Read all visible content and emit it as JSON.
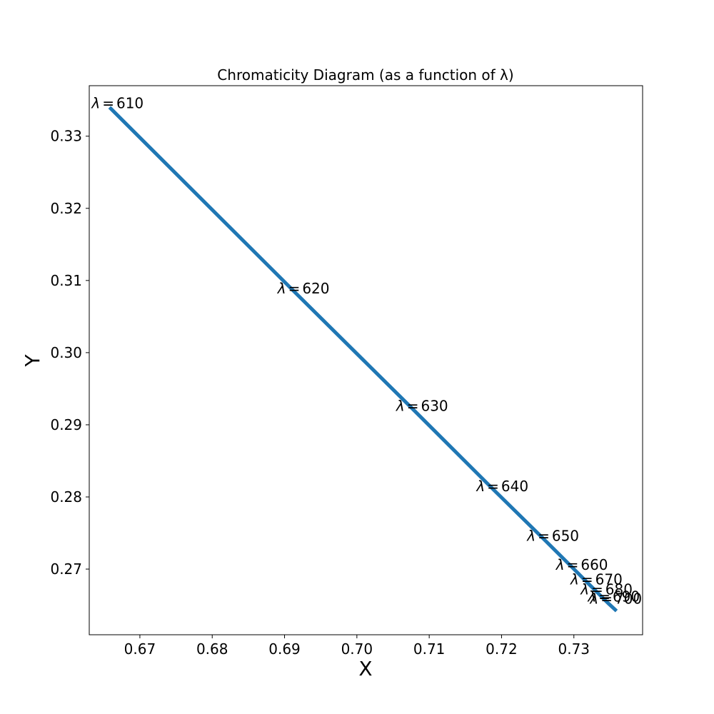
{
  "chart_data": {
    "type": "line",
    "title": "Chromaticity Diagram (as a function of λ)",
    "xlabel": "X",
    "ylabel": "Y",
    "xlim": [
      0.663,
      0.7395
    ],
    "ylim": [
      0.2609,
      0.337
    ],
    "xticks": [
      "0.67",
      "0.68",
      "0.69",
      "0.70",
      "0.71",
      "0.72",
      "0.73"
    ],
    "yticks": [
      "0.27",
      "0.28",
      "0.29",
      "0.30",
      "0.31",
      "0.32",
      "0.33"
    ],
    "grid": false,
    "series_color": "#1f77b4",
    "points": [
      {
        "lambda": 610,
        "x": 0.6658,
        "y": 0.334
      },
      {
        "lambda": 620,
        "x": 0.6915,
        "y": 0.3083
      },
      {
        "lambda": 630,
        "x": 0.7079,
        "y": 0.292
      },
      {
        "lambda": 640,
        "x": 0.719,
        "y": 0.2809
      },
      {
        "lambda": 650,
        "x": 0.726,
        "y": 0.274
      },
      {
        "lambda": 660,
        "x": 0.73,
        "y": 0.27
      },
      {
        "lambda": 670,
        "x": 0.732,
        "y": 0.268
      },
      {
        "lambda": 680,
        "x": 0.7334,
        "y": 0.2666
      },
      {
        "lambda": 690,
        "x": 0.7344,
        "y": 0.2656
      },
      {
        "lambda": 700,
        "x": 0.7347,
        "y": 0.2653
      }
    ],
    "line_end": {
      "x": 0.7359,
      "y": 0.2642
    },
    "annotation_prefix": "λ",
    "annotation_eq": "="
  }
}
